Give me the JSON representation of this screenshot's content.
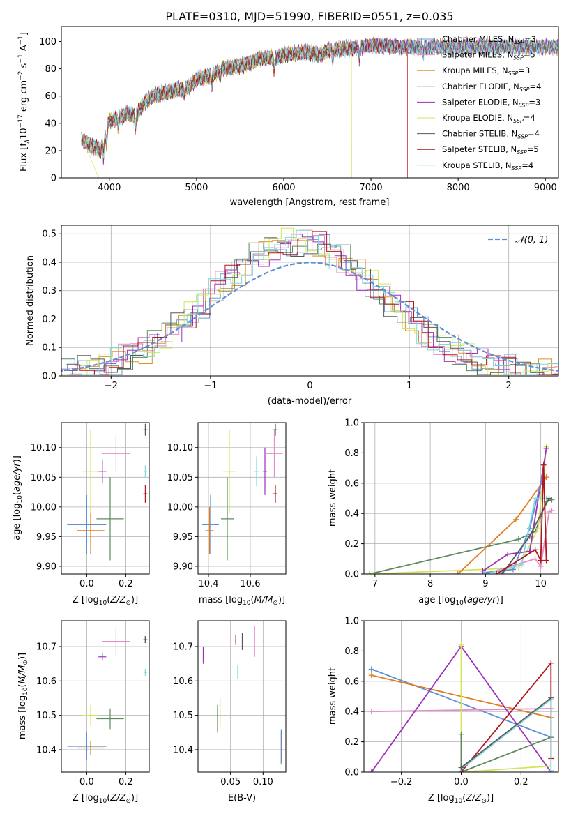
{
  "chart_data": {
    "type": "figure",
    "title": "PLATE=0310, MJD=51990, FIBERID=0551, z=0.035",
    "spectrum": {
      "type": "line",
      "xlabel": "wavelength [Angstrom, rest frame]",
      "ylabel_main": "Flux [f",
      "xlim": [
        3450,
        9150
      ],
      "ylim": [
        0,
        111
      ],
      "xticks": [
        4000,
        5000,
        6000,
        7000,
        8000,
        9000
      ],
      "yticks": [
        0,
        20,
        40,
        60,
        80,
        100
      ],
      "anchors": [
        [
          3680,
          28
        ],
        [
          3780,
          24
        ],
        [
          3850,
          22
        ],
        [
          3900,
          20
        ],
        [
          3950,
          30
        ],
        [
          4000,
          42
        ],
        [
          4100,
          44
        ],
        [
          4200,
          47
        ],
        [
          4300,
          45
        ],
        [
          4400,
          55
        ],
        [
          4500,
          60
        ],
        [
          4600,
          62
        ],
        [
          4700,
          63
        ],
        [
          4800,
          65
        ],
        [
          4900,
          66
        ],
        [
          5000,
          72
        ],
        [
          5100,
          74
        ],
        [
          5200,
          76
        ],
        [
          5300,
          80
        ],
        [
          5400,
          81
        ],
        [
          5500,
          82
        ],
        [
          5600,
          84
        ],
        [
          5700,
          87
        ],
        [
          5800,
          88
        ],
        [
          5900,
          88
        ],
        [
          6000,
          90
        ],
        [
          6100,
          91
        ],
        [
          6200,
          92
        ],
        [
          6300,
          92
        ],
        [
          6400,
          90
        ],
        [
          6500,
          93
        ],
        [
          6600,
          94
        ],
        [
          6700,
          95
        ],
        [
          6800,
          95
        ],
        [
          6900,
          96
        ],
        [
          7000,
          97
        ],
        [
          7100,
          97
        ],
        [
          7200,
          97
        ],
        [
          7300,
          96
        ],
        [
          7400,
          96
        ]
      ],
      "legend": [
        {
          "label": "Chabrier MILES, N",
          "sub": "SSP",
          "suffix": "=3",
          "color": "#6a9fd1"
        },
        {
          "label": "Salpeter MILES, N",
          "sub": "SSP",
          "suffix": "=5",
          "color": "#e78bc4"
        },
        {
          "label": "Kroupa MILES, N",
          "sub": "SSP",
          "suffix": "=3",
          "color": "#d8932c"
        },
        {
          "label": "Chabrier ELODIE, N",
          "sub": "SSP",
          "suffix": "=4",
          "color": "#5b8a5b"
        },
        {
          "label": "Salpeter ELODIE, N",
          "sub": "SSP",
          "suffix": "=3",
          "color": "#9b30b9"
        },
        {
          "label": "Kroupa ELODIE, N",
          "sub": "SSP",
          "suffix": "=4",
          "color": "#d4e657"
        },
        {
          "label": "Chabrier STELIB, N",
          "sub": "SSP",
          "suffix": "=4",
          "color": "#595959"
        },
        {
          "label": "Salpeter STELIB, N",
          "sub": "SSP",
          "suffix": "=5",
          "color": "#b0171f"
        },
        {
          "label": "Kroupa STELIB, N",
          "sub": "SSP",
          "suffix": "=4",
          "color": "#7fd8e0"
        }
      ]
    },
    "residuals": {
      "type": "step-histogram",
      "xlabel": "(data-model)/error",
      "ylabel": "Normed distribution",
      "xlim": [
        -2.5,
        2.5
      ],
      "ylim": [
        0,
        0.53
      ],
      "xticks": [
        -2,
        -1,
        0,
        1,
        2
      ],
      "xticklabels": [
        "−2",
        "−1",
        "0",
        "1",
        "2"
      ],
      "yticks": [
        0,
        0.1,
        0.2,
        0.3,
        0.4,
        0.5
      ],
      "yticklabels": [
        "0.0",
        "0.1",
        "0.2",
        "0.3",
        "0.4",
        "0.5"
      ],
      "legend_label": "𝒩(0, 1)",
      "gauss_color": "#5b8fd8"
    },
    "ageZ": {
      "xlabel": "Z [log",
      "ylabel": "age  [log",
      "xlim": [
        -0.13,
        0.32
      ],
      "ylim": [
        9.887,
        10.142
      ],
      "xticks": [
        0.0,
        0.2
      ],
      "xticklabels": [
        "0.0",
        "0.2"
      ],
      "yticks": [
        9.9,
        9.95,
        10.0,
        10.05,
        10.1
      ],
      "yticklabels": [
        "9.90",
        "9.95",
        "10.00",
        "10.05",
        "10.10"
      ],
      "points": [
        {
          "x": 0.0,
          "y": 9.97,
          "xerr": 0.1,
          "yerr": 0.05,
          "color": "#5b8fd8"
        },
        {
          "x": 0.02,
          "y": 9.96,
          "xerr": 0.07,
          "yerr": 0.04,
          "color": "#e07c1f"
        },
        {
          "x": 0.12,
          "y": 9.98,
          "xerr": 0.07,
          "yerr": 0.07,
          "color": "#5b8a5b"
        },
        {
          "x": 0.02,
          "y": 10.06,
          "xerr": 0.04,
          "yerr": 0.07,
          "color": "#d4e657"
        },
        {
          "x": 0.08,
          "y": 10.06,
          "xerr": 0.02,
          "yerr": 0.02,
          "color": "#9b30b9"
        },
        {
          "x": 0.15,
          "y": 10.09,
          "xerr": 0.07,
          "yerr": 0.03,
          "color": "#e78bc4"
        },
        {
          "x": 0.3,
          "y": 10.06,
          "xerr": 0.01,
          "yerr": 0.01,
          "color": "#7fd8e0"
        },
        {
          "x": 0.3,
          "y": 10.022,
          "xerr": 0.01,
          "yerr": 0.015,
          "color": "#b0171f"
        },
        {
          "x": 0.3,
          "y": 10.13,
          "xerr": 0.01,
          "yerr": 0.01,
          "color": "#595959"
        }
      ]
    },
    "ageMass": {
      "xlabel": "mass [log",
      "xlim": [
        10.35,
        10.77
      ],
      "ylim": [
        9.887,
        10.142
      ],
      "xticks": [
        10.4,
        10.6
      ],
      "xticklabels": [
        "10.4",
        "10.6"
      ],
      "yticks": [
        9.9,
        9.95,
        10.0,
        10.05,
        10.1
      ],
      "yticklabels": [
        "9.90",
        "9.95",
        "10.00",
        "10.05",
        "10.10"
      ],
      "points": [
        {
          "x": 10.41,
          "y": 9.97,
          "xerr": 0.04,
          "yerr": 0.05,
          "color": "#5b8fd8"
        },
        {
          "x": 10.405,
          "y": 9.96,
          "xerr": 0.02,
          "yerr": 0.04,
          "color": "#e07c1f"
        },
        {
          "x": 10.49,
          "y": 9.98,
          "xerr": 0.03,
          "yerr": 0.07,
          "color": "#5b8a5b"
        },
        {
          "x": 10.5,
          "y": 10.06,
          "xerr": 0.03,
          "yerr": 0.07,
          "color": "#d4e657"
        },
        {
          "x": 10.67,
          "y": 10.06,
          "xerr": 0.01,
          "yerr": 0.04,
          "color": "#9b30b9"
        },
        {
          "x": 10.715,
          "y": 10.09,
          "xerr": 0.04,
          "yerr": 0.04,
          "color": "#e78bc4"
        },
        {
          "x": 10.63,
          "y": 10.06,
          "xerr": 0.01,
          "yerr": 0.025,
          "color": "#7fd8e0"
        },
        {
          "x": 10.72,
          "y": 10.022,
          "xerr": 0.01,
          "yerr": 0.015,
          "color": "#b0171f"
        },
        {
          "x": 10.72,
          "y": 10.13,
          "xerr": 0.01,
          "yerr": 0.01,
          "color": "#595959"
        }
      ]
    },
    "weightAge": {
      "xlabel": "age  [log",
      "ylabel": "mass weight",
      "xlim": [
        6.8,
        10.32
      ],
      "ylim": [
        0,
        1
      ],
      "xticks": [
        7,
        8,
        9,
        10
      ],
      "xticklabels": [
        "7",
        "8",
        "9",
        "10"
      ],
      "yticks": [
        0,
        0.2,
        0.4,
        0.6,
        0.8,
        1.0
      ],
      "yticklabels": [
        "0.0",
        "0.2",
        "0.4",
        "0.6",
        "0.8",
        "1.0"
      ],
      "series": [
        {
          "color": "#5b8a5b",
          "points": [
            [
              6.9,
              0.0
            ],
            [
              9.6,
              0.23
            ],
            [
              9.9,
              0.28
            ],
            [
              10.1,
              0.48
            ],
            [
              10.2,
              0.49
            ]
          ]
        },
        {
          "color": "#d4e657",
          "points": [
            [
              6.9,
              0.0
            ],
            [
              9.6,
              0.04
            ],
            [
              9.95,
              0.3
            ],
            [
              10.1,
              0.84
            ]
          ]
        },
        {
          "color": "#e07c1f",
          "points": [
            [
              8.5,
              0.0
            ],
            [
              9.55,
              0.36
            ],
            [
              10.1,
              0.64
            ]
          ]
        },
        {
          "color": "#e78bc4",
          "points": [
            [
              9.0,
              0.0
            ],
            [
              9.9,
              0.1
            ],
            [
              10.0,
              0.05
            ],
            [
              10.15,
              0.41
            ],
            [
              10.2,
              0.42
            ]
          ]
        },
        {
          "color": "#9b30b9",
          "points": [
            [
              8.95,
              0.02
            ],
            [
              9.4,
              0.13
            ],
            [
              9.8,
              0.15
            ],
            [
              10.1,
              0.83
            ]
          ]
        },
        {
          "color": "#5b8fd8",
          "points": [
            [
              9.0,
              0.01
            ],
            [
              9.5,
              0.03
            ],
            [
              9.8,
              0.3
            ],
            [
              10.05,
              0.68
            ]
          ]
        },
        {
          "color": "#7fd8e0",
          "points": [
            [
              9.0,
              0.0
            ],
            [
              9.65,
              0.06
            ],
            [
              9.9,
              0.5
            ],
            [
              10.1,
              0.5
            ]
          ]
        },
        {
          "color": "#595959",
          "points": [
            [
              9.3,
              0.0
            ],
            [
              9.8,
              0.25
            ],
            [
              10.15,
              0.5
            ]
          ]
        },
        {
          "color": "#b0171f",
          "points": [
            [
              9.2,
              0.0
            ],
            [
              9.9,
              0.16
            ],
            [
              10.0,
              0.09
            ],
            [
              10.05,
              0.72
            ],
            [
              10.1,
              0.09
            ]
          ]
        }
      ]
    },
    "massZ": {
      "xlabel": "Z [log",
      "ylabel": "mass [log",
      "xlim": [
        -0.13,
        0.32
      ],
      "ylim": [
        10.335,
        10.775
      ],
      "xticks": [
        0.0,
        0.2
      ],
      "xticklabels": [
        "0.0",
        "0.2"
      ],
      "yticks": [
        10.4,
        10.5,
        10.6,
        10.7
      ],
      "yticklabels": [
        "10.4",
        "10.5",
        "10.6",
        "10.7"
      ],
      "points": [
        {
          "x": 0.0,
          "y": 10.41,
          "xerr": 0.1,
          "yerr": 0.04,
          "color": "#5b8fd8"
        },
        {
          "x": 0.02,
          "y": 10.405,
          "xerr": 0.07,
          "yerr": 0.02,
          "color": "#e07c1f"
        },
        {
          "x": 0.12,
          "y": 10.49,
          "xerr": 0.07,
          "yerr": 0.03,
          "color": "#5b8a5b"
        },
        {
          "x": 0.02,
          "y": 10.5,
          "xerr": 0.04,
          "yerr": 0.03,
          "color": "#d4e657"
        },
        {
          "x": 0.08,
          "y": 10.67,
          "xerr": 0.02,
          "yerr": 0.01,
          "color": "#9b30b9"
        },
        {
          "x": 0.15,
          "y": 10.715,
          "xerr": 0.07,
          "yerr": 0.04,
          "color": "#e78bc4"
        },
        {
          "x": 0.3,
          "y": 10.625,
          "xerr": 0.01,
          "yerr": 0.01,
          "color": "#7fd8e0"
        },
        {
          "x": 0.3,
          "y": 10.72,
          "xerr": 0.01,
          "yerr": 0.01,
          "color": "#b0171f"
        },
        {
          "x": 0.3,
          "y": 10.72,
          "xerr": 0.01,
          "yerr": 0.01,
          "color": "#595959"
        }
      ]
    },
    "massEBV": {
      "xlabel": "E(B-V)",
      "xlim": [
        0.0,
        0.135
      ],
      "ylim": [
        10.335,
        10.775
      ],
      "xticks": [
        0.05,
        0.1
      ],
      "xticklabels": [
        "0.05",
        "0.10"
      ],
      "yticks": [
        10.4,
        10.5,
        10.6,
        10.7
      ],
      "yticklabels": [
        "10.4",
        "10.5",
        "10.6",
        "10.7"
      ],
      "points": [
        {
          "x": 0.008,
          "y": 10.675,
          "yerr": 0.025,
          "color": "#9b30b9"
        },
        {
          "x": 0.03,
          "y": 10.49,
          "yerr": 0.04,
          "color": "#5b8a5b"
        },
        {
          "x": 0.034,
          "y": 10.51,
          "yerr": 0.04,
          "color": "#d4e657"
        },
        {
          "x": 0.058,
          "y": 10.72,
          "yerr": 0.015,
          "color": "#b0171f"
        },
        {
          "x": 0.061,
          "y": 10.625,
          "yerr": 0.02,
          "color": "#7fd8e0"
        },
        {
          "x": 0.068,
          "y": 10.715,
          "yerr": 0.025,
          "color": "#595959"
        },
        {
          "x": 0.087,
          "y": 10.715,
          "yerr": 0.045,
          "color": "#e78bc4"
        },
        {
          "x": 0.128,
          "y": 10.41,
          "yerr": 0.05,
          "color": "#5b8fd8"
        },
        {
          "x": 0.126,
          "y": 10.405,
          "yerr": 0.05,
          "color": "#e07c1f"
        }
      ]
    },
    "weightZ": {
      "xlabel": "Z [log",
      "ylabel": "mass weight",
      "xlim": [
        -0.325,
        0.325
      ],
      "ylim": [
        0,
        1
      ],
      "xticks": [
        -0.2,
        0.0,
        0.2
      ],
      "xticklabels": [
        "−0.2",
        "0.0",
        "0.2"
      ],
      "yticks": [
        0,
        0.2,
        0.4,
        0.6,
        0.8,
        1.0
      ],
      "yticklabels": [
        "0.0",
        "0.2",
        "0.4",
        "0.6",
        "0.8",
        "1.0"
      ],
      "series": [
        {
          "color": "#5b8fd8",
          "points": [
            [
              -0.3,
              0.68
            ],
            [
              0.3,
              0.23
            ]
          ]
        },
        {
          "color": "#e07c1f",
          "points": [
            [
              -0.3,
              0.64
            ],
            [
              0.3,
              0.36
            ]
          ]
        },
        {
          "color": "#e78bc4",
          "points": [
            [
              -0.3,
              0.4
            ],
            [
              0.3,
              0.42
            ]
          ]
        },
        {
          "color": "#9b30b9",
          "points": [
            [
              -0.3,
              0.0
            ],
            [
              0.0,
              0.83
            ],
            [
              0.3,
              0.0
            ]
          ]
        },
        {
          "color": "#d4e657",
          "points": [
            [
              0.0,
              0.84
            ],
            [
              0.0,
              0.0
            ],
            [
              0.3,
              0.04
            ]
          ]
        },
        {
          "color": "#5b8a5b",
          "points": [
            [
              0.0,
              0.25
            ],
            [
              0.0,
              0.0
            ],
            [
              0.3,
              0.23
            ]
          ]
        },
        {
          "color": "#b0171f",
          "points": [
            [
              0.0,
              0.0
            ],
            [
              0.3,
              0.72
            ],
            [
              0.3,
              0.09
            ]
          ]
        },
        {
          "color": "#7fd8e0",
          "points": [
            [
              0.0,
              0.02
            ],
            [
              0.3,
              0.48
            ],
            [
              0.3,
              0.01
            ]
          ]
        },
        {
          "color": "#595959",
          "points": [
            [
              0.0,
              0.03
            ],
            [
              0.3,
              0.49
            ]
          ]
        }
      ]
    }
  }
}
